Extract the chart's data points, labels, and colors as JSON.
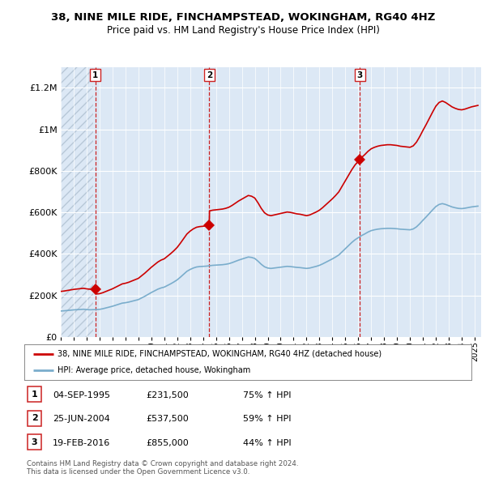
{
  "title": "38, NINE MILE RIDE, FINCHAMPSTEAD, WOKINGHAM, RG40 4HZ",
  "subtitle": "Price paid vs. HM Land Registry's House Price Index (HPI)",
  "legend_line1": "38, NINE MILE RIDE, FINCHAMPSTEAD, WOKINGHAM, RG40 4HZ (detached house)",
  "legend_line2": "HPI: Average price, detached house, Wokingham",
  "sale_labels": [
    "1",
    "2",
    "3"
  ],
  "sale_dates_dec": [
    1995.67,
    2004.48,
    2016.13
  ],
  "sale_prices": [
    231500,
    537500,
    855000
  ],
  "sale_dates_str": [
    "04-SEP-1995",
    "25-JUN-2004",
    "19-FEB-2016"
  ],
  "sale_prices_str": [
    "£231,500",
    "£537,500",
    "£855,000"
  ],
  "sale_hpi_str": [
    "75% ↑ HPI",
    "59% ↑ HPI",
    "44% ↑ HPI"
  ],
  "xmin": 1993.0,
  "xmax": 2025.5,
  "ymin": 0,
  "ymax": 1300000,
  "yticks": [
    0,
    200000,
    400000,
    600000,
    800000,
    1000000,
    1200000
  ],
  "ytick_labels": [
    "£0",
    "£200K",
    "£400K",
    "£600K",
    "£800K",
    "£1M",
    "£1.2M"
  ],
  "plot_bg_color": "#dce8f5",
  "hatch_color": "#b8c8d8",
  "red_line_color": "#cc0000",
  "blue_line_color": "#7aadcc",
  "dashed_line_color": "#cc2222",
  "footer_text": "Contains HM Land Registry data © Crown copyright and database right 2024.\nThis data is licensed under the Open Government Licence v3.0.",
  "hpi_x_start": 1993.0,
  "hpi_scale_at_sale1": 132000,
  "hpi_scale_at_sale2": 340000,
  "hpi_scale_at_sale3": 594000
}
